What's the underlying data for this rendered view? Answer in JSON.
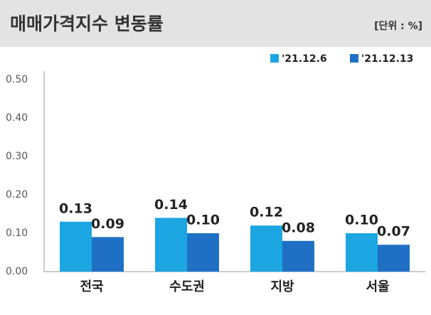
{
  "chart_data": {
    "type": "bar",
    "title": "매매가격지수 변동률",
    "unit": "[단위 : %]",
    "categories": [
      "전국",
      "수도권",
      "지방",
      "서울"
    ],
    "series": [
      {
        "name": "'21.12.6",
        "color": "#1ba6e2",
        "values": [
          0.13,
          0.14,
          0.12,
          0.1
        ],
        "value_labels": [
          "0.13",
          "0.14",
          "0.12",
          "0.10"
        ]
      },
      {
        "name": "'21.12.13",
        "color": "#1f70c4",
        "values": [
          0.09,
          0.1,
          0.08,
          0.07
        ],
        "value_labels": [
          "0.09",
          "0.10",
          "0.08",
          "0.07"
        ]
      }
    ],
    "ylim": [
      0,
      0.5
    ],
    "yticks": [
      {
        "value": 0,
        "label": "0.00"
      },
      {
        "value": 0.1,
        "label": "0.10"
      },
      {
        "value": 0.2,
        "label": "0.20"
      },
      {
        "value": 0.3,
        "label": "0.30"
      },
      {
        "value": 0.4,
        "label": "0.40"
      },
      {
        "value": 0.5,
        "label": "0.50"
      }
    ],
    "grid": false,
    "legend": "top-right"
  }
}
